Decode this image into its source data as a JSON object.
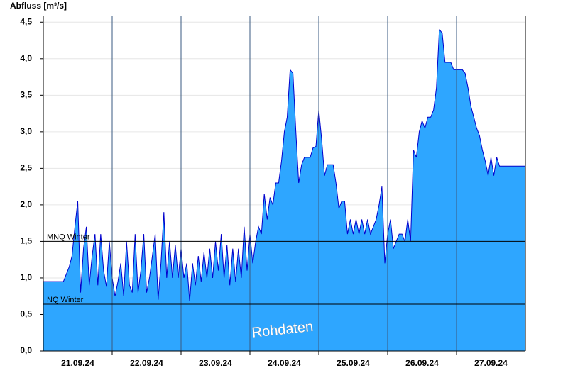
{
  "chart_data": {
    "type": "area",
    "y_axis_label": "Abfluss [m³/s]",
    "annotation": "Rohdaten",
    "color": "#2ea6ff",
    "line_color": "#0000cc",
    "xlim": [
      0,
      168
    ],
    "ylim": [
      0,
      4.59
    ],
    "xticks": [
      {
        "value": 12,
        "label": "21.09.24"
      },
      {
        "value": 36,
        "label": "22.09.24"
      },
      {
        "value": 60,
        "label": "23.09.24"
      },
      {
        "value": 84,
        "label": "24.09.24"
      },
      {
        "value": 108,
        "label": "25.09.24"
      },
      {
        "value": 132,
        "label": "26.09.24"
      },
      {
        "value": 156,
        "label": "27.09.24"
      }
    ],
    "x_gridlines": [
      24,
      48,
      72,
      96,
      120,
      144
    ],
    "yticks": [
      {
        "value": 0,
        "label": "0,0"
      },
      {
        "value": 0.5,
        "label": "0,5"
      },
      {
        "value": 1,
        "label": "1,0"
      },
      {
        "value": 1.5,
        "label": "1,5"
      },
      {
        "value": 2,
        "label": "2,0"
      },
      {
        "value": 2.5,
        "label": "2,5"
      },
      {
        "value": 3,
        "label": "3,0"
      },
      {
        "value": 3.5,
        "label": "3,5"
      },
      {
        "value": 4,
        "label": "4,0"
      },
      {
        "value": 4.5,
        "label": "4,5"
      }
    ],
    "grid": true,
    "reference_lines": [
      {
        "value": 1.5,
        "label": "MNQ Winter"
      },
      {
        "value": 0.64,
        "label": "NQ Winter"
      }
    ],
    "x": [
      0,
      1,
      2,
      3,
      4,
      5,
      6,
      7,
      8,
      9,
      10,
      11,
      12,
      13,
      14,
      15,
      16,
      17,
      18,
      19,
      20,
      21,
      22,
      23,
      24,
      25,
      26,
      27,
      28,
      29,
      30,
      31,
      32,
      33,
      34,
      35,
      36,
      37,
      38,
      39,
      40,
      41,
      42,
      43,
      44,
      45,
      46,
      47,
      48,
      49,
      50,
      51,
      52,
      53,
      54,
      55,
      56,
      57,
      58,
      59,
      60,
      61,
      62,
      63,
      64,
      65,
      66,
      67,
      68,
      69,
      70,
      71,
      72,
      73,
      74,
      75,
      76,
      77,
      78,
      79,
      80,
      81,
      82,
      83,
      84,
      85,
      86,
      87,
      88,
      89,
      90,
      91,
      92,
      93,
      94,
      95,
      96,
      97,
      98,
      99,
      100,
      101,
      102,
      103,
      104,
      105,
      106,
      107,
      108,
      109,
      110,
      111,
      112,
      113,
      114,
      115,
      116,
      117,
      118,
      119,
      120,
      121,
      122,
      123,
      124,
      125,
      126,
      127,
      128,
      129,
      130,
      131,
      132,
      133,
      134,
      135,
      136,
      137,
      138,
      139,
      140,
      141,
      142,
      143,
      144,
      145,
      146,
      147,
      148,
      149,
      150,
      151,
      152,
      153,
      154,
      155,
      156,
      157,
      158,
      159,
      160,
      161,
      162,
      163,
      164,
      165,
      166,
      167,
      168
    ],
    "values": [
      0.95,
      0.95,
      0.95,
      0.95,
      0.95,
      0.95,
      0.95,
      0.95,
      1.05,
      1.15,
      1.3,
      1.7,
      2.05,
      0.8,
      1.4,
      1.7,
      0.9,
      1.3,
      1.6,
      0.9,
      1.6,
      1.1,
      0.88,
      1.5,
      1.0,
      0.75,
      0.95,
      1.2,
      0.75,
      1.5,
      0.9,
      0.8,
      1.6,
      0.8,
      1.1,
      1.6,
      0.8,
      1.0,
      1.3,
      1.6,
      0.7,
      1.2,
      1.9,
      1.0,
      1.5,
      1.0,
      1.45,
      1.0,
      1.4,
      1.0,
      1.2,
      0.68,
      1.2,
      0.9,
      1.3,
      0.95,
      1.35,
      1.0,
      1.4,
      1.0,
      1.5,
      1.1,
      1.6,
      1.0,
      1.45,
      0.9,
      1.4,
      0.95,
      1.4,
      1.0,
      1.7,
      1.1,
      1.6,
      1.2,
      1.5,
      1.7,
      1.6,
      2.15,
      1.8,
      2.1,
      2.0,
      2.3,
      2.3,
      2.6,
      3.0,
      3.2,
      3.85,
      3.8,
      3.0,
      2.3,
      2.55,
      2.65,
      2.65,
      2.65,
      2.78,
      2.8,
      3.3,
      2.9,
      2.4,
      2.55,
      2.55,
      2.55,
      2.3,
      1.95,
      2.05,
      2.05,
      1.6,
      1.8,
      1.6,
      1.8,
      1.6,
      1.8,
      1.6,
      1.8,
      1.6,
      1.7,
      1.8,
      2.0,
      2.25,
      1.2,
      1.6,
      1.8,
      1.4,
      1.5,
      1.6,
      1.6,
      1.5,
      1.8,
      1.5,
      2.75,
      2.65,
      3.0,
      3.15,
      3.05,
      3.2,
      3.2,
      3.3,
      3.6,
      4.4,
      4.35,
      3.95,
      3.95,
      3.95,
      3.85,
      3.85,
      3.85,
      3.85,
      3.8,
      3.6,
      3.35,
      3.2,
      3.05,
      2.95,
      2.75,
      2.6,
      2.4,
      2.65,
      2.4,
      2.65,
      2.53,
      2.53,
      2.53,
      2.53,
      2.53,
      2.53,
      2.53,
      2.53,
      2.53,
      2.53
    ]
  }
}
